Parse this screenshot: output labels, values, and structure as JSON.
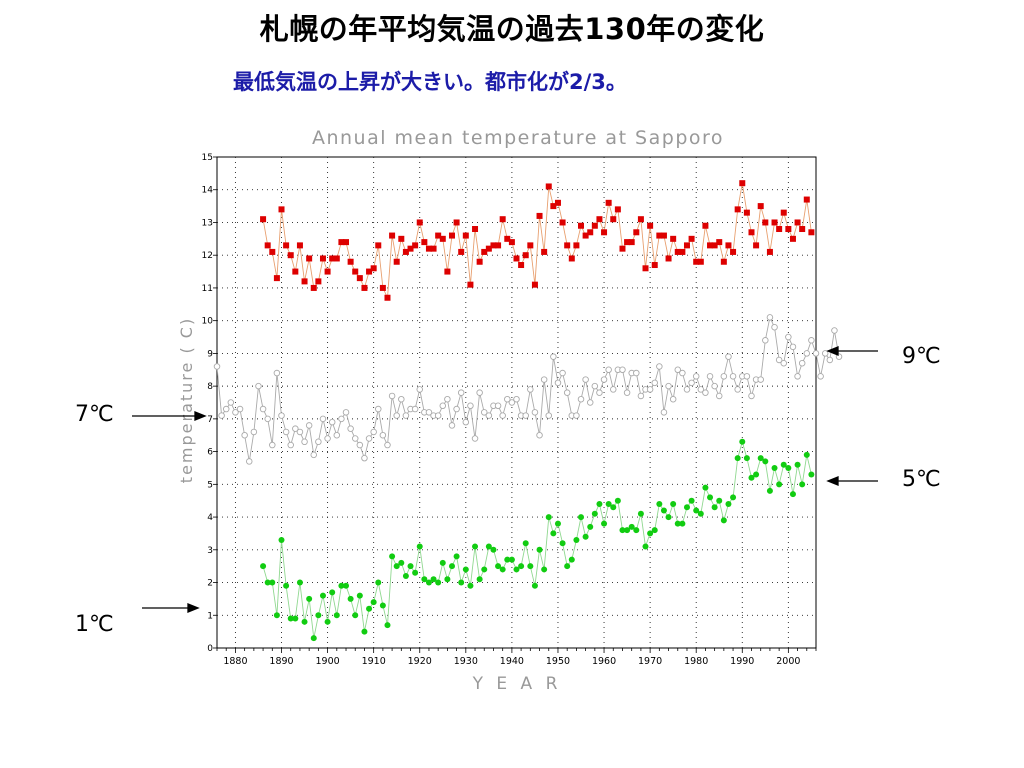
{
  "slide": {
    "title": "札幌の年平均気温の過去130年の変化",
    "subtitle": "最低気温の上昇が大きい。都市化が2/3。"
  },
  "annotations": {
    "right_top": "9℃",
    "right_bottom": "5℃",
    "left_top": "7℃",
    "left_bottom": "1℃"
  },
  "chart_data": {
    "type": "line",
    "title": "Annual mean temperature at Sapporo",
    "xlabel": "Y E A R",
    "ylabel": "temperature ( C)",
    "xlim": [
      1876,
      2006
    ],
    "ylim": [
      0,
      15
    ],
    "x_ticks": [
      1880,
      1890,
      1900,
      1910,
      1920,
      1930,
      1940,
      1950,
      1960,
      1970,
      1980,
      1990,
      2000
    ],
    "y_ticks": [
      0,
      1,
      2,
      3,
      4,
      5,
      6,
      7,
      8,
      9,
      10,
      11,
      12,
      13,
      14,
      15
    ],
    "grid": true,
    "colors": {
      "max": "#dd0000",
      "max_line": "#e8a070",
      "mean": "#aaaaaa",
      "min": "#11cc11",
      "min_line": "#90d890"
    },
    "series": [
      {
        "key": "max",
        "start_year": 1886,
        "marker": "square",
        "values": [
          13.1,
          12.3,
          12.1,
          11.3,
          13.4,
          12.3,
          12.0,
          11.5,
          12.3,
          11.2,
          11.9,
          11.0,
          11.2,
          11.9,
          11.5,
          11.9,
          11.9,
          12.4,
          12.4,
          11.8,
          11.5,
          11.3,
          11.0,
          11.5,
          11.6,
          12.3,
          11.0,
          10.7,
          12.6,
          11.8,
          12.5,
          12.1,
          12.2,
          12.3,
          13.0,
          12.4,
          12.2,
          12.2,
          12.6,
          12.5,
          11.5,
          12.6,
          13.0,
          12.1,
          12.6,
          11.1,
          12.8,
          11.8,
          12.1,
          12.2,
          12.3,
          12.3,
          13.1,
          12.5,
          12.4,
          11.9,
          11.7,
          12.0,
          12.3,
          11.1,
          13.2,
          12.1,
          14.1,
          13.5,
          13.6,
          13.0,
          12.3,
          11.9,
          12.3,
          12.9,
          12.6,
          12.7,
          12.9,
          13.1,
          12.7,
          13.6,
          13.1,
          13.4,
          12.2,
          12.4,
          12.4,
          12.7,
          13.1,
          11.6,
          12.9,
          11.7,
          12.6,
          12.6,
          11.9,
          12.5,
          12.1,
          12.1,
          12.3,
          12.5,
          11.8,
          11.8,
          12.9,
          12.3,
          12.3,
          12.4,
          11.8,
          12.3,
          12.1,
          13.4,
          14.2,
          13.3,
          12.7,
          12.3,
          13.5,
          13.0,
          12.1,
          13.0,
          12.8,
          13.3,
          12.8,
          12.5,
          13.0,
          12.8,
          13.7,
          12.7
        ]
      },
      {
        "key": "mean",
        "start_year": 1876,
        "marker": "open-circle",
        "values": [
          8.6,
          7.1,
          7.3,
          7.5,
          7.2,
          7.3,
          6.5,
          5.7,
          6.6,
          8.0,
          7.3,
          7.0,
          6.2,
          8.4,
          7.1,
          6.6,
          6.2,
          6.7,
          6.6,
          6.3,
          6.8,
          5.9,
          6.3,
          7.0,
          6.4,
          6.9,
          6.5,
          7.0,
          7.2,
          6.7,
          6.4,
          6.2,
          5.8,
          6.4,
          6.6,
          7.3,
          6.5,
          6.2,
          7.7,
          7.1,
          7.6,
          7.1,
          7.3,
          7.3,
          7.9,
          7.2,
          7.2,
          7.1,
          7.1,
          7.4,
          7.6,
          6.8,
          7.3,
          7.8,
          6.9,
          7.4,
          6.4,
          7.8,
          7.2,
          7.1,
          7.4,
          7.4,
          7.1,
          7.6,
          7.5,
          7.6,
          7.1,
          7.1,
          7.9,
          7.2,
          6.5,
          8.2,
          7.1,
          8.9,
          8.1,
          8.4,
          7.8,
          7.1,
          7.1,
          7.6,
          8.2,
          7.5,
          8.0,
          7.8,
          8.2,
          8.5,
          7.9,
          8.5,
          8.5,
          7.8,
          8.4,
          8.4,
          7.7,
          7.9,
          7.9,
          8.1,
          8.6,
          7.2,
          8.0,
          7.6,
          8.5,
          8.4,
          7.9,
          8.1,
          8.3,
          7.9,
          7.8,
          8.3,
          8.0,
          7.7,
          8.3,
          8.9,
          8.3,
          7.9,
          8.3,
          8.3,
          7.7,
          8.2,
          8.2,
          9.4,
          10.1,
          9.8,
          8.8,
          8.7,
          9.5,
          9.2,
          8.3,
          8.7,
          9.0,
          9.4,
          9.0,
          8.3,
          9.0,
          8.8,
          9.7,
          8.9
        ]
      },
      {
        "key": "min",
        "start_year": 1886,
        "marker": "filled-circle",
        "values": [
          2.5,
          2.0,
          2.0,
          1.0,
          3.3,
          1.9,
          0.9,
          0.9,
          2.0,
          0.8,
          1.5,
          0.3,
          1.0,
          1.6,
          0.8,
          1.7,
          1.0,
          1.9,
          1.9,
          1.5,
          1.0,
          1.6,
          0.5,
          1.2,
          1.4,
          2.0,
          1.3,
          0.7,
          2.8,
          2.5,
          2.6,
          2.2,
          2.5,
          2.3,
          3.1,
          2.1,
          2.0,
          2.1,
          2.0,
          2.6,
          2.1,
          2.5,
          2.8,
          2.0,
          2.4,
          1.9,
          3.1,
          2.1,
          2.4,
          3.1,
          3.0,
          2.5,
          2.4,
          2.7,
          2.7,
          2.4,
          2.5,
          3.2,
          2.5,
          1.9,
          3.0,
          2.4,
          4.0,
          3.5,
          3.8,
          3.2,
          2.5,
          2.7,
          3.3,
          4.0,
          3.4,
          3.7,
          4.1,
          4.4,
          3.8,
          4.4,
          4.3,
          4.5,
          3.6,
          3.6,
          3.7,
          3.6,
          4.1,
          3.1,
          3.5,
          3.6,
          4.4,
          4.2,
          4.0,
          4.4,
          3.8,
          3.8,
          4.3,
          4.5,
          4.2,
          4.1,
          4.9,
          4.6,
          4.3,
          4.5,
          3.9,
          4.4,
          4.6,
          5.8,
          6.3,
          5.8,
          5.2,
          5.3,
          5.8,
          5.7,
          4.8,
          5.5,
          5.0,
          5.6,
          5.5,
          4.7,
          5.6,
          5.0,
          5.9,
          5.3
        ]
      }
    ]
  }
}
